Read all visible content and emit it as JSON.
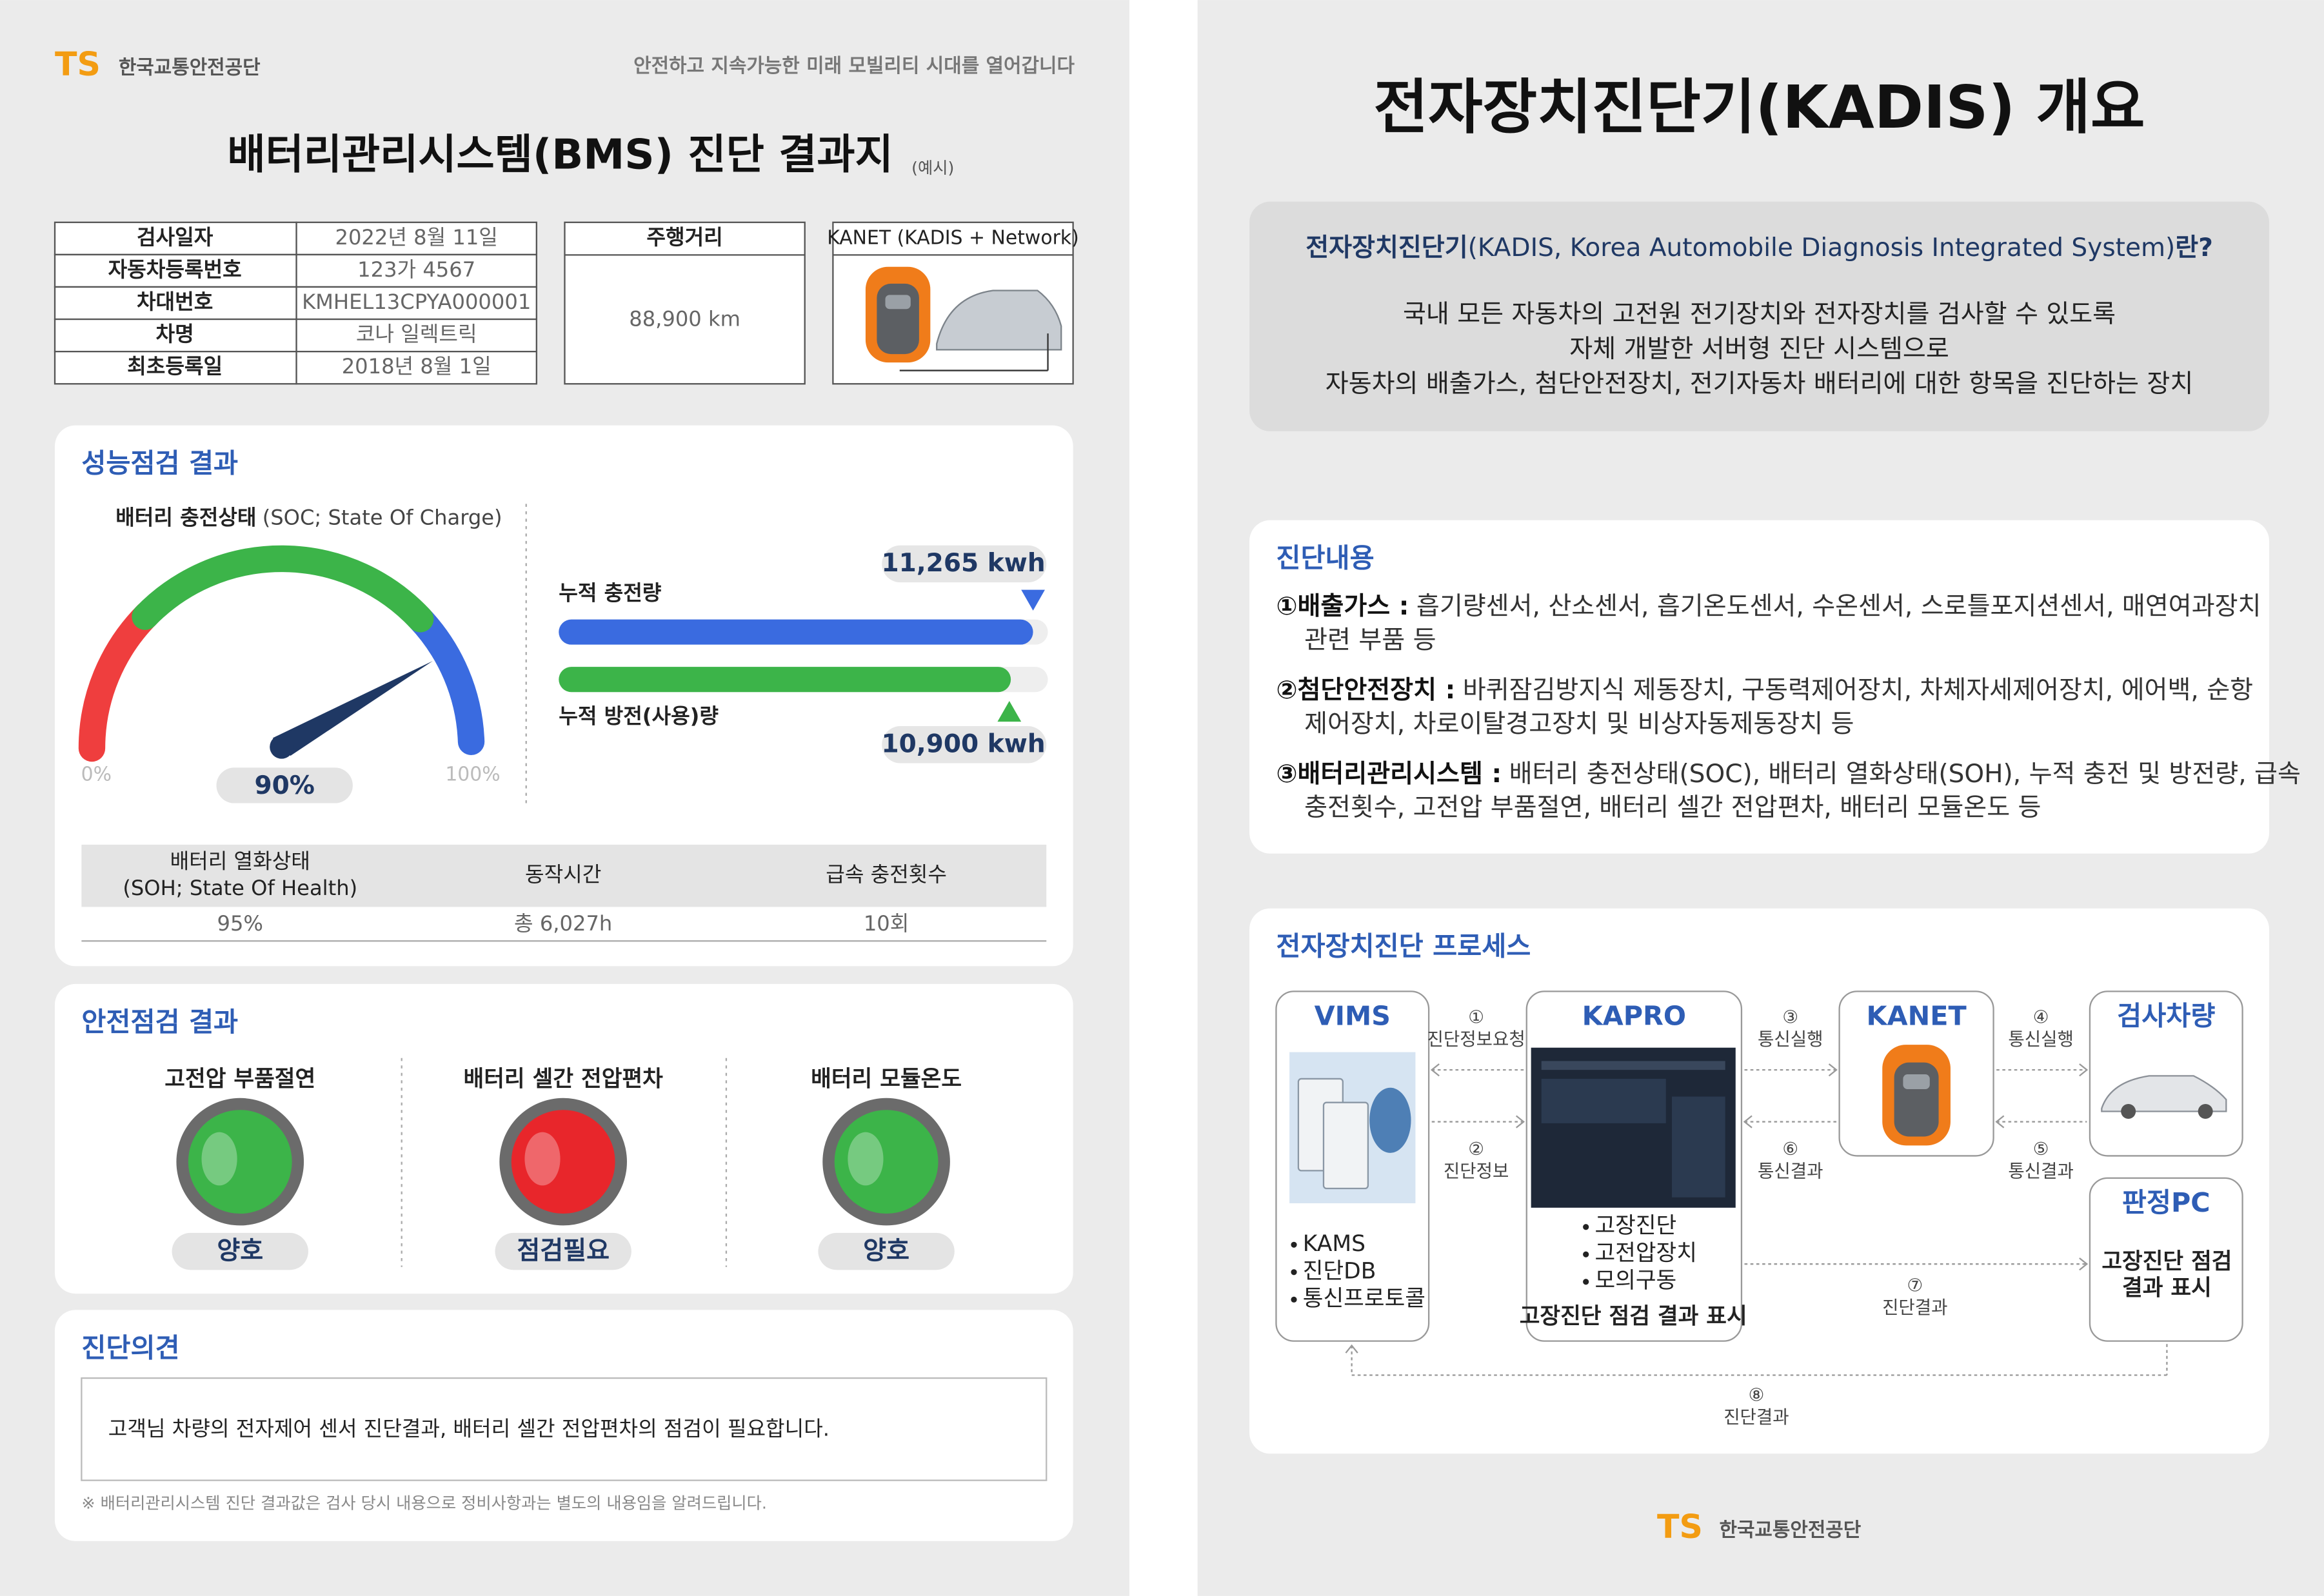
{
  "left_page": {
    "header": {
      "logo": "TS",
      "org": "한국교통안전공단",
      "slogan": "안전하고 지속가능한 미래 모빌리티 시대를 열어갑니다"
    },
    "title": "배터리관리시스템(BMS) 진단 결과지",
    "title_note": "(예시)",
    "vehicle_table": {
      "rows": [
        [
          "검사일자",
          "2022년 8월 11일"
        ],
        [
          "자동차등록번호",
          "123가 4567"
        ],
        [
          "차대번호",
          "KMHEL13CPYA000001"
        ],
        [
          "차명",
          "코나 일렉트릭"
        ],
        [
          "최초등록일",
          "2018년 8월 1일"
        ]
      ]
    },
    "mileage": {
      "header": "주행거리",
      "value": "88,900 km"
    },
    "device": {
      "header": "KANET (KADIS + Network)"
    },
    "performance": {
      "title": "성능점검 결과",
      "soc_label": "배터리 충전상태",
      "soc_label_note": "(SOC; State Of Charge)",
      "soc_min": "0%",
      "soc_max": "100%",
      "soc_value": "90%",
      "charge_label": "누적 충전량",
      "charge_value": "11,265 kwh",
      "discharge_label": "누적 방전(사용)량",
      "discharge_value": "10,900 kwh",
      "table": {
        "headers": [
          [
            "배터리 열화상태",
            "(SOH; State Of Health)"
          ],
          [
            "동작시간"
          ],
          [
            "급속 충전횟수"
          ]
        ],
        "values": [
          "95%",
          "총 6,027h",
          "10회"
        ]
      }
    },
    "safety": {
      "title": "안전점검 결과",
      "items": [
        {
          "label": "고전압 부품절연",
          "status": "양호",
          "color": "#3cb449"
        },
        {
          "label": "배터리 셀간 전압편차",
          "status": "점검필요",
          "color": "#e8262b"
        },
        {
          "label": "배터리 모듈온도",
          "status": "양호",
          "color": "#3cb449"
        }
      ]
    },
    "opinion": {
      "title": "진단의견",
      "text": "고객님 차량의 전자제어 센서 진단결과, 배터리 셀간 전압편차의 점검이 필요합니다.",
      "note": "※ 배터리관리시스템 진단 결과값은 검사 당시 내용으로 정비사항과는 별도의 내용임을 알려드립니다."
    }
  },
  "right_page": {
    "title": "전자장치진단기(KADIS) 개요",
    "intro": {
      "question": [
        "전자장치진단기",
        "(KADIS, Korea Automobile Diagnosis Integrated System)",
        "란?"
      ],
      "lines": [
        "국내 모든 자동차의 고전원 전기장치와 전자장치를 검사할 수 있도록",
        "자체 개발한 서버형 진단 시스템으로",
        "자동차의 배출가스, 첨단안전장치, 전기자동차 배터리에 대한 항목을 진단하는 장치"
      ]
    },
    "contents": {
      "title": "진단내용",
      "items": [
        {
          "num": "①",
          "lead": "배출가스 :",
          "lines": [
            "흡기량센서, 산소센서, 흡기온도센서, 수온센서, 스로틀포지션센서, 매연여과장치",
            "관련 부품 등"
          ]
        },
        {
          "num": "②",
          "lead": "첨단안전장치 :",
          "lines": [
            "바퀴잠김방지식 제동장치, 구동력제어장치, 차체자세제어장치, 에어백, 순항",
            "제어장치, 차로이탈경고장치 및 비상자동제동장치 등"
          ]
        },
        {
          "num": "③",
          "lead": "배터리관리시스템 :",
          "lines": [
            "배터리 충전상태(SOC), 배터리 열화상태(SOH), 누적 충전 및 방전량, 급속",
            "충전횟수, 고전압 부품절연, 배터리 셀간 전압편차, 배터리 모듈온도 등"
          ]
        }
      ]
    },
    "process": {
      "title": "전자장치진단 프로세스",
      "nodes": [
        {
          "label": "VIMS",
          "items": [
            "KAMS",
            "진단DB",
            "통신프로토콜"
          ]
        },
        {
          "label": "KAPRO",
          "items": [
            "고장진단",
            "고전압장치",
            "모의구동"
          ],
          "caption": [
            "고장진단 점검 결과 표시"
          ]
        },
        {
          "label": "KANET"
        },
        {
          "label": "검사차량"
        },
        {
          "label": "판정PC",
          "caption": [
            "고장진단 점검",
            "결과 표시"
          ]
        }
      ],
      "steps": [
        {
          "num": "①",
          "label": "진단정보요청"
        },
        {
          "num": "②",
          "label": "진단정보"
        },
        {
          "num": "③",
          "label": "통신실행"
        },
        {
          "num": "④",
          "label": "통신실행"
        },
        {
          "num": "⑤",
          "label": "통신결과"
        },
        {
          "num": "⑥",
          "label": "통신결과"
        },
        {
          "num": "⑦",
          "label": "진단결과"
        },
        {
          "num": "⑧",
          "label": "진단결과"
        }
      ]
    },
    "footer": {
      "logo": "TS",
      "org": "한국교통안전공단"
    }
  }
}
